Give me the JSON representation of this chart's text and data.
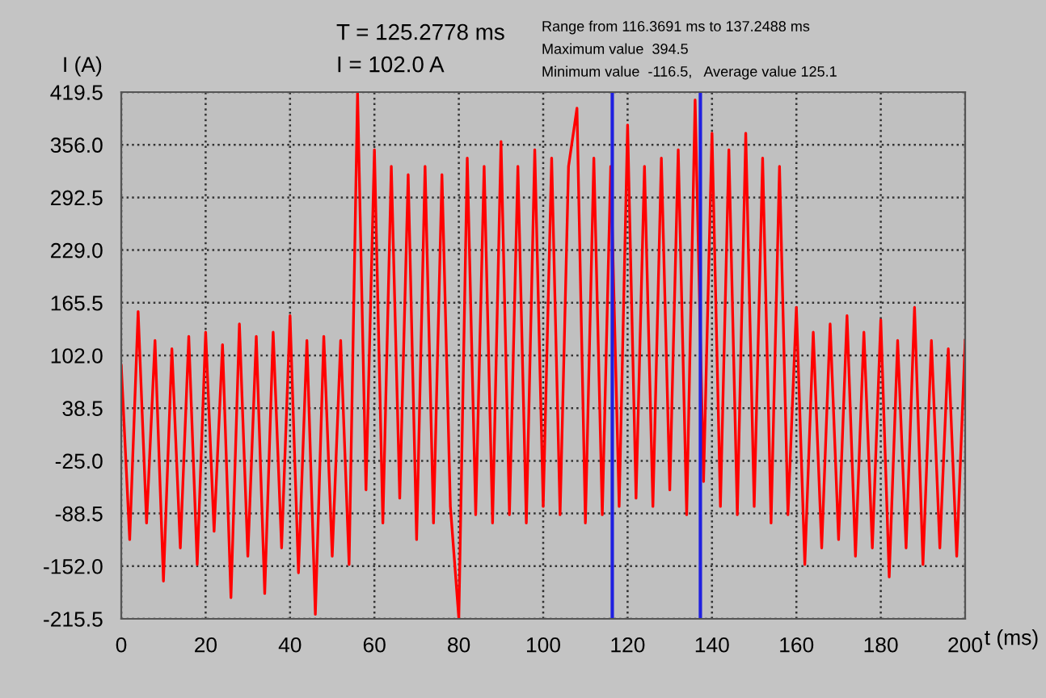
{
  "chart_data": {
    "type": "line",
    "xlabel": "t (ms)",
    "ylabel": "I (A)",
    "annotations": [
      "T = 125.2778 ms",
      "I = 102.0 A",
      "Range from 116.3691 ms to 137.2488 ms",
      "Maximum value  394.5",
      "Minimum value  -116.5,   Average value 125.1"
    ],
    "x": [
      0,
      2,
      4,
      6,
      8,
      10,
      12,
      14,
      16,
      18,
      20,
      22,
      24,
      26,
      28,
      30,
      32,
      34,
      36,
      38,
      40,
      42,
      44,
      46,
      48,
      50,
      52,
      54,
      56,
      58,
      60,
      62,
      64,
      66,
      68,
      70,
      72,
      74,
      76,
      78,
      80,
      82,
      84,
      86,
      88,
      90,
      92,
      94,
      96,
      98,
      100,
      102,
      104,
      106,
      108,
      110,
      112,
      114,
      116,
      118,
      120,
      122,
      124,
      126,
      128,
      130,
      132,
      134,
      136,
      138,
      140,
      142,
      144,
      146,
      148,
      150,
      152,
      154,
      156,
      158,
      160,
      162,
      164,
      166,
      168,
      170,
      172,
      174,
      176,
      178,
      180,
      182,
      184,
      186,
      188,
      190,
      192,
      194,
      196,
      198,
      200
    ],
    "series": [
      {
        "color": "#ff0000",
        "values": [
          90,
          -120,
          155,
          -100,
          120,
          -170,
          110,
          -130,
          125,
          -150,
          130,
          -110,
          115,
          -190,
          140,
          -140,
          125,
          -185,
          130,
          -130,
          150,
          -160,
          120,
          -210,
          125,
          -140,
          120,
          -150,
          419,
          -60,
          350,
          -100,
          330,
          -70,
          320,
          -120,
          330,
          -100,
          320,
          -80,
          -215,
          340,
          -90,
          330,
          -100,
          360,
          -90,
          330,
          -100,
          350,
          -80,
          340,
          -90,
          330,
          400,
          -100,
          340,
          -90,
          330,
          -80,
          380,
          -70,
          330,
          -80,
          340,
          -60,
          350,
          -90,
          410,
          -50,
          370,
          -80,
          350,
          -90,
          370,
          -80,
          340,
          -100,
          330,
          -90,
          160,
          -150,
          130,
          -130,
          140,
          -120,
          150,
          -140,
          130,
          -130,
          145,
          -165,
          120,
          -130,
          160,
          -150,
          120,
          -130,
          110,
          -140,
          120
        ]
      }
    ],
    "xlim": [
      0,
      200
    ],
    "xticks": [
      0,
      20,
      40,
      60,
      80,
      100,
      120,
      140,
      160,
      180,
      200
    ],
    "ylim": [
      -215.5,
      419.5
    ],
    "yticks": [
      {
        "value": -215.5,
        "label": "-215.5"
      },
      {
        "value": -152.0,
        "label": "-152.0"
      },
      {
        "value": -88.5,
        "label": "-88.5"
      },
      {
        "value": -25.0,
        "label": "-25.0"
      },
      {
        "value": 38.5,
        "label": "38.5"
      },
      {
        "value": 102.0,
        "label": "102.0"
      },
      {
        "value": 165.5,
        "label": "165.5"
      },
      {
        "value": 229.0,
        "label": "229.0"
      },
      {
        "value": 292.5,
        "label": "292.5"
      },
      {
        "value": 356.0,
        "label": "356.0"
      },
      {
        "value": 419.5,
        "label": "419.5"
      }
    ],
    "ref_lines": [
      {
        "axis": "x",
        "value": 116.3691,
        "color": "#2020e0"
      },
      {
        "axis": "x",
        "value": 137.2488,
        "color": "#2020e0"
      }
    ],
    "grid": true,
    "line_style": "solid",
    "marker": "none"
  }
}
